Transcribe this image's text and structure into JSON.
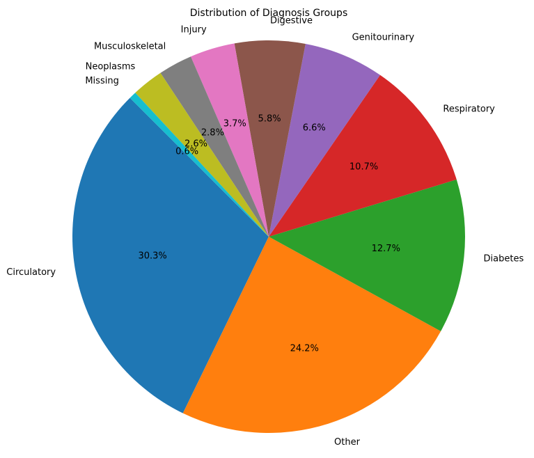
{
  "chart_data": {
    "type": "pie",
    "title": "Distribution of Diagnosis Groups",
    "start_angle_deg": 135,
    "direction": "counterclockwise",
    "slices": [
      {
        "label": "Circulatory",
        "value": 30.3,
        "pct_label": "30.3%",
        "color": "#1f77b4"
      },
      {
        "label": "Other",
        "value": 24.2,
        "pct_label": "24.2%",
        "color": "#ff7f0e"
      },
      {
        "label": "Diabetes",
        "value": 12.7,
        "pct_label": "12.7%",
        "color": "#2ca02c"
      },
      {
        "label": "Respiratory",
        "value": 10.7,
        "pct_label": "10.7%",
        "color": "#d62728"
      },
      {
        "label": "Genitourinary",
        "value": 6.6,
        "pct_label": "6.6%",
        "color": "#9467bd"
      },
      {
        "label": "Digestive",
        "value": 5.8,
        "pct_label": "5.8%",
        "color": "#8c564b"
      },
      {
        "label": "Injury",
        "value": 3.7,
        "pct_label": "3.7%",
        "color": "#e377c2"
      },
      {
        "label": "Musculoskeletal",
        "value": 2.8,
        "pct_label": "2.8%",
        "color": "#7f7f7f"
      },
      {
        "label": "Neoplasms",
        "value": 2.6,
        "pct_label": "2.6%",
        "color": "#bcbd22"
      },
      {
        "label": "Missing",
        "value": 0.6,
        "pct_label": "0.6%",
        "color": "#17becf"
      }
    ]
  }
}
